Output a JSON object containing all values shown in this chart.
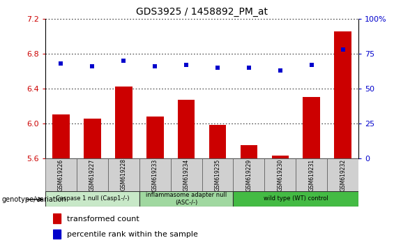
{
  "title": "GDS3925 / 1458892_PM_at",
  "samples": [
    "GSM619226",
    "GSM619227",
    "GSM619228",
    "GSM619233",
    "GSM619234",
    "GSM619235",
    "GSM619229",
    "GSM619230",
    "GSM619231",
    "GSM619232"
  ],
  "bar_values": [
    6.1,
    6.05,
    6.42,
    6.08,
    6.27,
    5.98,
    5.75,
    5.63,
    6.3,
    7.05
  ],
  "dot_values": [
    68,
    66,
    70,
    66,
    67,
    65,
    65,
    63,
    67,
    78
  ],
  "bar_color": "#cc0000",
  "dot_color": "#0000cc",
  "ylim_left": [
    5.6,
    7.2
  ],
  "ylim_right": [
    0,
    100
  ],
  "yticks_left": [
    5.6,
    6.0,
    6.4,
    6.8,
    7.2
  ],
  "yticks_right": [
    0,
    25,
    50,
    75,
    100
  ],
  "groups": [
    {
      "label": "Caspase 1 null (Casp1-/-)",
      "start": 0,
      "end": 3,
      "color": "#c8e8c8"
    },
    {
      "label": "inflammasome adapter null\n(ASC-/-)",
      "start": 3,
      "end": 6,
      "color": "#a0d8a0"
    },
    {
      "label": "wild type (WT) control",
      "start": 6,
      "end": 10,
      "color": "#44bb44"
    }
  ],
  "legend_bar_label": "transformed count",
  "legend_dot_label": "percentile rank within the sample",
  "genotype_label": "genotype/variation",
  "tick_label_color_left": "#cc0000",
  "tick_label_color_right": "#0000cc",
  "sample_box_color": "#d0d0d0",
  "group_border_color": "#333333"
}
